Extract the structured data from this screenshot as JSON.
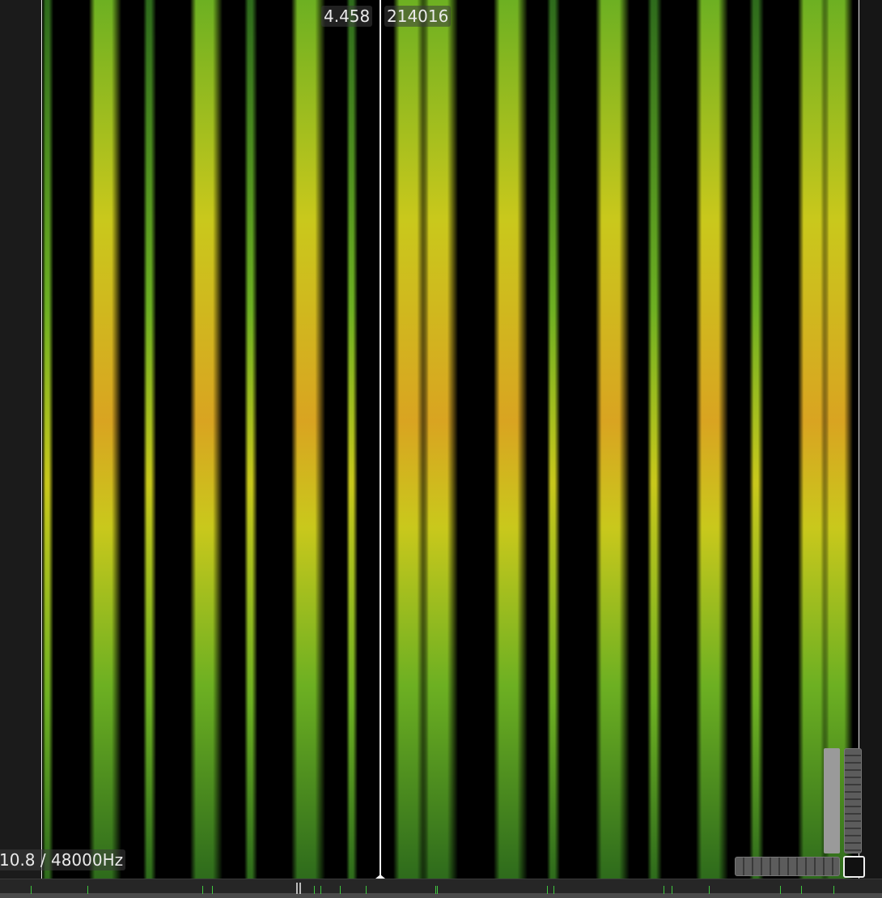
{
  "cursor": {
    "time": "4.458",
    "sample": "214016"
  },
  "status": {
    "rate_readout": "10.8 / 48000Hz"
  },
  "colors": {
    "background": "#000000",
    "low": "#2e6b1c",
    "mid": "#6db022",
    "high": "#c9c81c",
    "peak": "#d9a421"
  },
  "controls": {
    "vertical_zoom": "vertical-zoom-handle",
    "horizontal_zoom": "horizontal-zoom-handle",
    "reset": "zoom-reset-button"
  }
}
